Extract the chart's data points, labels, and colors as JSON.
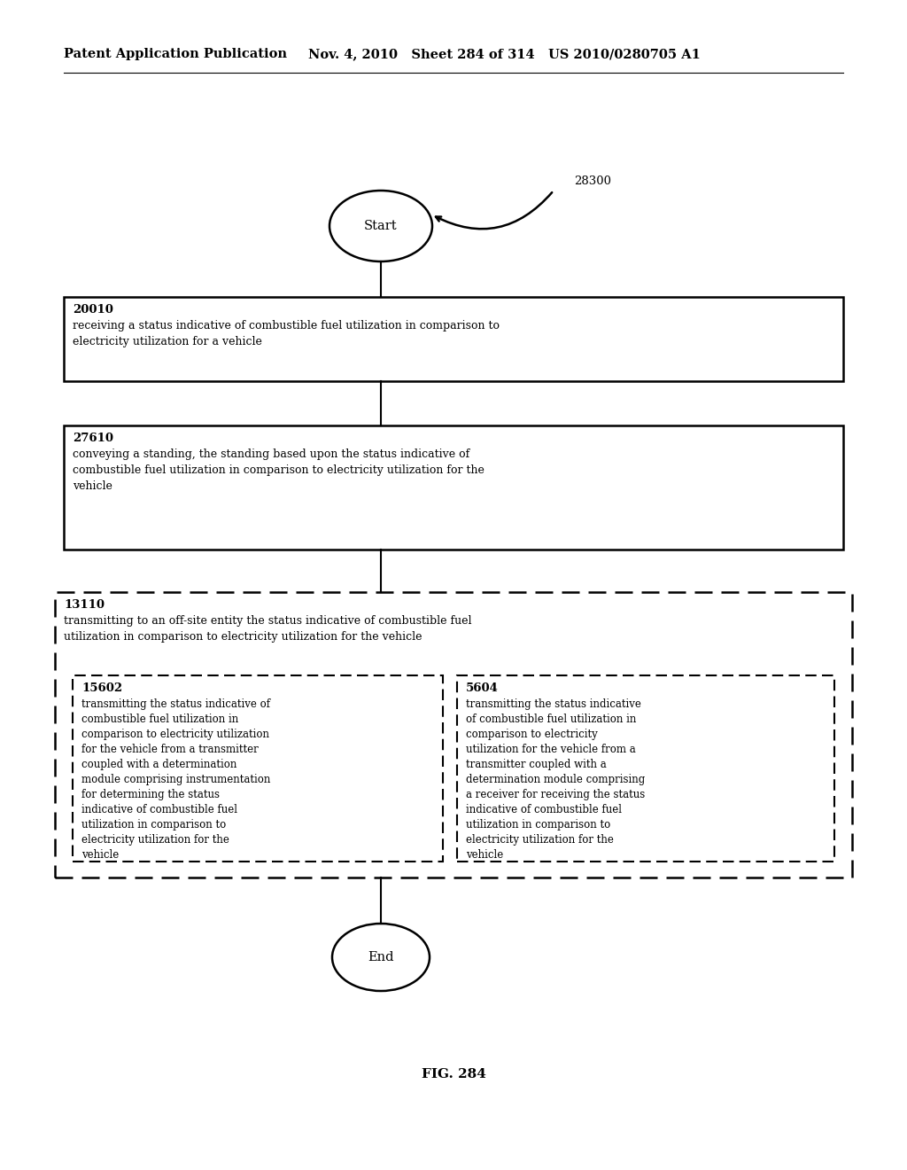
{
  "header_left": "Patent Application Publication",
  "header_mid": "Nov. 4, 2010   Sheet 284 of 314   US 2010/0280705 A1",
  "fig_label": "FIG. 284",
  "diagram_label": "28300",
  "start_label": "Start",
  "end_label": "End",
  "box1_id": "20010",
  "box1_text": "receiving a status indicative of combustible fuel utilization in comparison to\nelectricity utilization for a vehicle",
  "box2_id": "27610",
  "box2_text": "conveying a standing, the standing based upon the status indicative of\ncombustible fuel utilization in comparison to electricity utilization for the\nvehicle",
  "outer_dashed_id": "13110",
  "outer_dashed_text": "transmitting to an off-site entity the status indicative of combustible fuel\nutilization in comparison to electricity utilization for the vehicle",
  "inner_left_id": "15602",
  "inner_left_text": "transmitting the status indicative of\ncombustible fuel utilization in\ncomparison to electricity utilization\nfor the vehicle from a transmitter\ncoupled with a determination\nmodule comprising instrumentation\nfor determining the status\nindicative of combustible fuel\nutilization in comparison to\nelectricity utilization for the\nvehicle",
  "inner_right_id": "5604",
  "inner_right_text": "transmitting the status indicative\nof combustible fuel utilization in\ncomparison to electricity\nutilization for the vehicle from a\ntransmitter coupled with a\ndetermination module comprising\na receiver for receiving the status\nindicative of combustible fuel\nutilization in comparison to\nelectricity utilization for the\nvehicle",
  "bg_color": "#ffffff",
  "text_color": "#000000"
}
